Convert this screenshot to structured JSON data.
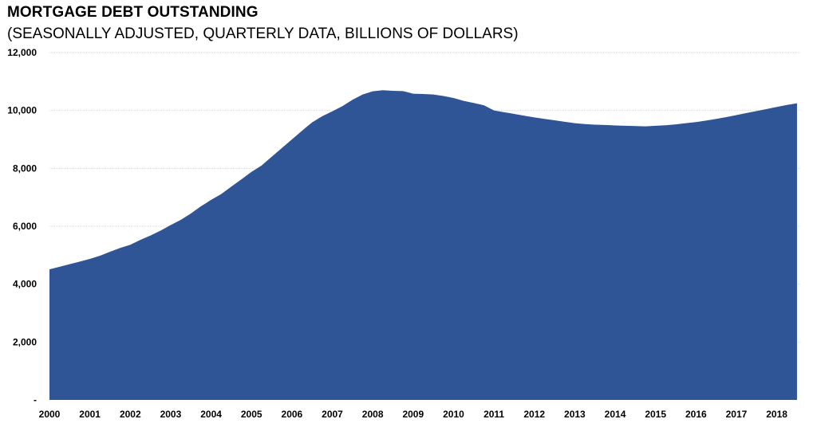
{
  "chart_data": {
    "type": "area",
    "title": "MORTGAGE DEBT OUTSTANDING",
    "subtitle": "(SEASONALLY ADJUSTED, QUARTERLY DATA, BILLIONS OF DOLLARS)",
    "xlabel": "",
    "ylabel": "",
    "xlim": [
      2000,
      2018.6
    ],
    "ylim": [
      0,
      12000
    ],
    "grid": true,
    "color": "#2F5597",
    "x_ticks": [
      "2000",
      "2001",
      "2002",
      "2003",
      "2004",
      "2005",
      "2006",
      "2007",
      "2008",
      "2009",
      "2010",
      "2011",
      "2012",
      "2013",
      "2014",
      "2015",
      "2016",
      "2017",
      "2018"
    ],
    "y_ticks": [
      {
        "value": 0,
        "label": "-"
      },
      {
        "value": 2000,
        "label": "2,000"
      },
      {
        "value": 4000,
        "label": "4,000"
      },
      {
        "value": 6000,
        "label": "6,000"
      },
      {
        "value": 8000,
        "label": "8,000"
      },
      {
        "value": 10000,
        "label": "10,000"
      },
      {
        "value": 12000,
        "label": "12,000"
      }
    ],
    "series": [
      {
        "name": "Mortgage debt outstanding",
        "x": [
          2000.0,
          2000.25,
          2000.5,
          2000.75,
          2001.0,
          2001.25,
          2001.5,
          2001.75,
          2002.0,
          2002.25,
          2002.5,
          2002.75,
          2003.0,
          2003.25,
          2003.5,
          2003.75,
          2004.0,
          2004.25,
          2004.5,
          2004.75,
          2005.0,
          2005.25,
          2005.5,
          2005.75,
          2006.0,
          2006.25,
          2006.5,
          2006.75,
          2007.0,
          2007.25,
          2007.5,
          2007.75,
          2008.0,
          2008.25,
          2008.5,
          2008.75,
          2009.0,
          2009.25,
          2009.5,
          2009.75,
          2010.0,
          2010.25,
          2010.5,
          2010.75,
          2011.0,
          2011.25,
          2011.5,
          2011.75,
          2012.0,
          2012.25,
          2012.5,
          2012.75,
          2013.0,
          2013.25,
          2013.5,
          2013.75,
          2014.0,
          2014.25,
          2014.5,
          2014.75,
          2015.0,
          2015.25,
          2015.5,
          2015.75,
          2016.0,
          2016.25,
          2016.5,
          2016.75,
          2017.0,
          2017.25,
          2017.5,
          2017.75,
          2018.0,
          2018.25,
          2018.5
        ],
        "values": [
          4510,
          4600,
          4690,
          4780,
          4870,
          4980,
          5120,
          5250,
          5360,
          5530,
          5680,
          5850,
          6040,
          6220,
          6440,
          6690,
          6910,
          7110,
          7370,
          7620,
          7880,
          8100,
          8400,
          8700,
          9000,
          9300,
          9590,
          9800,
          9970,
          10150,
          10370,
          10550,
          10660,
          10700,
          10680,
          10670,
          10580,
          10570,
          10550,
          10500,
          10430,
          10330,
          10260,
          10180,
          10000,
          9940,
          9880,
          9820,
          9760,
          9710,
          9660,
          9610,
          9560,
          9530,
          9510,
          9500,
          9480,
          9470,
          9460,
          9450,
          9470,
          9490,
          9520,
          9560,
          9600,
          9650,
          9710,
          9770,
          9840,
          9910,
          9980,
          10050,
          10120,
          10190,
          10250
        ]
      }
    ]
  }
}
